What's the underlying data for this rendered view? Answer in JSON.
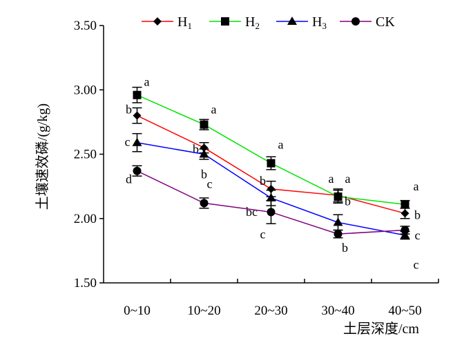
{
  "chart_data": {
    "type": "line",
    "title": "",
    "xlabel": "土层深度/cm",
    "ylabel": "土壤速效磷/(g/kg)",
    "categories": [
      "0~10",
      "10~20",
      "20~30",
      "30~40",
      "40~50"
    ],
    "ylim": [
      1.5,
      3.5
    ],
    "yticks": [
      "1.50",
      "2.00",
      "2.50",
      "3.00",
      "3.50"
    ],
    "grid": false,
    "legend_position": "top",
    "series": [
      {
        "name": "H",
        "subscript": "1",
        "color": "#ff0000",
        "marker": "diamond",
        "values": [
          2.8,
          2.55,
          2.23,
          2.18,
          2.04
        ],
        "errors": [
          0.06,
          0.04,
          0.06,
          0.05,
          0.04
        ],
        "sig": [
          "b",
          "b",
          "b",
          "a",
          "b"
        ]
      },
      {
        "name": "H",
        "subscript": "2",
        "color": "#00e600",
        "marker": "square",
        "values": [
          2.96,
          2.73,
          2.43,
          2.17,
          2.11
        ],
        "errors": [
          0.06,
          0.04,
          0.05,
          0.05,
          0.03
        ],
        "sig": [
          "a",
          "a",
          "a",
          "a",
          "a"
        ]
      },
      {
        "name": "H",
        "subscript": "3",
        "color": "#0000ff",
        "marker": "triangle",
        "values": [
          2.59,
          2.5,
          2.16,
          1.97,
          1.87
        ],
        "errors": [
          0.07,
          0.04,
          0.06,
          0.06,
          0.03
        ],
        "sig": [
          "c",
          "b",
          "bc",
          "b",
          "c"
        ]
      },
      {
        "name": "CK",
        "subscript": "",
        "color": "#800080",
        "marker": "circle",
        "values": [
          2.37,
          2.12,
          2.05,
          1.88,
          1.91
        ],
        "errors": [
          0.04,
          0.04,
          0.09,
          0.03,
          0.03
        ],
        "sig": [
          "d",
          "c",
          "c",
          "b",
          "c"
        ]
      }
    ]
  }
}
